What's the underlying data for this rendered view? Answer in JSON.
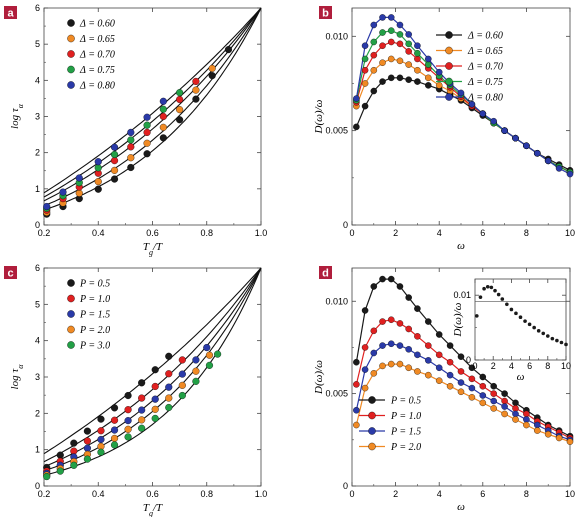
{
  "colors": {
    "black": "#1a1a1a",
    "orange": "#f08a24",
    "red": "#e02020",
    "green": "#22a046",
    "blue": "#2a3aa8",
    "badge": "#b01e3c"
  },
  "chart_data": [
    {
      "panel": "a",
      "type": "scatter",
      "xlabel": "Tg/T",
      "ylabel": "log τα",
      "xlim": [
        0.2,
        1.0
      ],
      "ylim": [
        0,
        6
      ],
      "xticks": [
        "0.2",
        "0.4",
        "0.6",
        "0.8",
        "1.0"
      ],
      "yticks": [
        "0",
        "1",
        "2",
        "3",
        "4",
        "5",
        "6"
      ],
      "legend_position": "top-left",
      "series": [
        {
          "name": "Δ = 0.60",
          "color": "black",
          "k": 2.2,
          "x": [
            0.21,
            0.27,
            0.33,
            0.4,
            0.46,
            0.52,
            0.58,
            0.64,
            0.7,
            0.76,
            0.82,
            0.88
          ],
          "y": [
            0.3,
            0.51,
            0.73,
            0.99,
            1.27,
            1.59,
            1.97,
            2.41,
            2.91,
            3.48,
            4.13,
            4.85
          ]
        },
        {
          "name": "Δ = 0.65",
          "color": "orange",
          "k": 1.75,
          "x": [
            0.21,
            0.27,
            0.33,
            0.4,
            0.46,
            0.52,
            0.58,
            0.64,
            0.7,
            0.76,
            0.82
          ],
          "y": [
            0.35,
            0.61,
            0.88,
            1.2,
            1.51,
            1.86,
            2.26,
            2.7,
            3.19,
            3.73,
            4.33
          ]
        },
        {
          "name": "Δ = 0.70",
          "color": "red",
          "k": 1.3,
          "x": [
            0.21,
            0.27,
            0.33,
            0.4,
            0.46,
            0.52,
            0.58,
            0.64,
            0.7,
            0.76
          ],
          "y": [
            0.41,
            0.73,
            1.05,
            1.43,
            1.78,
            2.16,
            2.56,
            3.0,
            3.47,
            3.97
          ]
        },
        {
          "name": "Δ = 0.75",
          "color": "green",
          "k": 1.0,
          "x": [
            0.21,
            0.27,
            0.33,
            0.4,
            0.46,
            0.52,
            0.58,
            0.64,
            0.7
          ],
          "y": [
            0.46,
            0.81,
            1.17,
            1.58,
            1.95,
            2.35,
            2.76,
            3.2,
            3.66
          ]
        },
        {
          "name": "Δ = 0.80",
          "color": "blue",
          "k": 0.7,
          "x": [
            0.21,
            0.27,
            0.33,
            0.4,
            0.46,
            0.52,
            0.58,
            0.64
          ],
          "y": [
            0.51,
            0.91,
            1.3,
            1.75,
            2.15,
            2.56,
            2.98,
            3.42
          ]
        }
      ]
    },
    {
      "panel": "b",
      "type": "line",
      "xlabel": "ω",
      "ylabel": "D(ω)/ω",
      "xlim": [
        0,
        10
      ],
      "ylim": [
        0,
        0.0115
      ],
      "xticks": [
        "0",
        "2",
        "4",
        "6",
        "8",
        "10"
      ],
      "yticks": [
        "0",
        "0.005",
        "0.010"
      ],
      "yticks_values": [
        0,
        0.005,
        0.01
      ],
      "legend_position": "top-right",
      "series": [
        {
          "name": "Δ = 0.60",
          "color": "black",
          "x": [
            0.2,
            0.6,
            1.0,
            1.4,
            1.8,
            2.2,
            2.6,
            3.0,
            3.5,
            4.0,
            4.5,
            5.0,
            5.5,
            6.0,
            6.5,
            7.0,
            7.5,
            8.0,
            8.5,
            9.0,
            9.5,
            10.0
          ],
          "y": [
            0.0052,
            0.0063,
            0.0071,
            0.0076,
            0.0078,
            0.0078,
            0.0077,
            0.0076,
            0.0074,
            0.0072,
            0.0069,
            0.0066,
            0.0062,
            0.0058,
            0.0054,
            0.005,
            0.0046,
            0.0042,
            0.0038,
            0.0035,
            0.0032,
            0.0029
          ]
        },
        {
          "name": "Δ = 0.65",
          "color": "orange",
          "x": [
            0.2,
            0.6,
            1.0,
            1.4,
            1.8,
            2.2,
            2.6,
            3.0,
            3.5,
            4.0,
            4.5,
            5.0,
            5.5,
            6.0,
            6.5,
            7.0,
            7.5,
            8.0,
            8.5,
            9.0,
            9.5,
            10.0
          ],
          "y": [
            0.0063,
            0.0075,
            0.0082,
            0.0086,
            0.0088,
            0.0087,
            0.0085,
            0.0082,
            0.0078,
            0.0074,
            0.0071,
            0.0067,
            0.0063,
            0.0059,
            0.0054,
            0.005,
            0.0046,
            0.0042,
            0.0038,
            0.0034,
            0.0031,
            0.0028
          ]
        },
        {
          "name": "Δ = 0.70",
          "color": "red",
          "x": [
            0.2,
            0.6,
            1.0,
            1.4,
            1.8,
            2.2,
            2.6,
            3.0,
            3.5,
            4.0,
            4.5,
            5.0,
            5.5,
            6.0,
            6.5,
            7.0,
            7.5,
            8.0,
            8.5,
            9.0,
            9.5,
            10.0
          ],
          "y": [
            0.0065,
            0.0082,
            0.009,
            0.0095,
            0.0097,
            0.0096,
            0.0092,
            0.0088,
            0.0083,
            0.0078,
            0.0073,
            0.0068,
            0.0063,
            0.0059,
            0.0054,
            0.005,
            0.0046,
            0.0042,
            0.0038,
            0.0034,
            0.0031,
            0.0028
          ]
        },
        {
          "name": "Δ = 0.75",
          "color": "green",
          "x": [
            0.2,
            0.6,
            1.0,
            1.4,
            1.8,
            2.2,
            2.6,
            3.0,
            3.5,
            4.0,
            4.5,
            5.0,
            5.5,
            6.0,
            6.5,
            7.0,
            7.5,
            8.0,
            8.5,
            9.0,
            9.5,
            10.0
          ],
          "y": [
            0.0066,
            0.0088,
            0.0097,
            0.0102,
            0.0103,
            0.0101,
            0.0096,
            0.0091,
            0.0085,
            0.0079,
            0.0074,
            0.0069,
            0.0064,
            0.0059,
            0.0054,
            0.005,
            0.0046,
            0.0042,
            0.0038,
            0.0034,
            0.0031,
            0.0028
          ]
        },
        {
          "name": "Δ = 0.80",
          "color": "blue",
          "x": [
            0.2,
            0.6,
            1.0,
            1.4,
            1.8,
            2.2,
            2.6,
            3.0,
            3.5,
            4.0,
            4.5,
            5.0,
            5.5,
            6.0,
            6.5,
            7.0,
            7.5,
            8.0,
            8.5,
            9.0,
            9.5,
            10.0
          ],
          "y": [
            0.0067,
            0.0095,
            0.0106,
            0.011,
            0.011,
            0.0106,
            0.0101,
            0.0095,
            0.0088,
            0.0081,
            0.0075,
            0.007,
            0.0064,
            0.0059,
            0.0055,
            0.005,
            0.0046,
            0.0042,
            0.0038,
            0.0034,
            0.003,
            0.0027
          ]
        }
      ]
    },
    {
      "panel": "c",
      "type": "scatter",
      "xlabel": "Tg/T",
      "ylabel": "log τα",
      "xlim": [
        0.2,
        1.0
      ],
      "ylim": [
        0,
        6
      ],
      "xticks": [
        "0.2",
        "0.4",
        "0.6",
        "0.8",
        "1.0"
      ],
      "yticks": [
        "0",
        "1",
        "2",
        "3",
        "4",
        "5",
        "6"
      ],
      "legend_position": "top-left",
      "series": [
        {
          "name": "P = 0.5",
          "color": "black",
          "k": 0.7,
          "x": [
            0.21,
            0.26,
            0.31,
            0.36,
            0.41,
            0.46,
            0.51,
            0.56,
            0.61,
            0.66
          ],
          "y": [
            0.51,
            0.85,
            1.18,
            1.51,
            1.84,
            2.15,
            2.49,
            2.84,
            3.2,
            3.57
          ]
        },
        {
          "name": "P = 1.0",
          "color": "red",
          "k": 1.3,
          "x": [
            0.21,
            0.26,
            0.31,
            0.36,
            0.41,
            0.46,
            0.51,
            0.56,
            0.61,
            0.66,
            0.71
          ],
          "y": [
            0.41,
            0.68,
            0.96,
            1.24,
            1.52,
            1.81,
            2.1,
            2.42,
            2.74,
            3.09,
            3.47
          ]
        },
        {
          "name": "P = 1.5",
          "color": "blue",
          "k": 1.75,
          "x": [
            0.21,
            0.26,
            0.31,
            0.36,
            0.41,
            0.46,
            0.51,
            0.56,
            0.61,
            0.66,
            0.71,
            0.76,
            0.8
          ],
          "y": [
            0.35,
            0.57,
            0.8,
            1.04,
            1.28,
            1.54,
            1.8,
            2.09,
            2.39,
            2.72,
            3.08,
            3.47,
            3.81
          ]
        },
        {
          "name": "P = 2.0",
          "color": "orange",
          "k": 2.2,
          "x": [
            0.21,
            0.26,
            0.31,
            0.36,
            0.41,
            0.46,
            0.51,
            0.56,
            0.61,
            0.66,
            0.71,
            0.76,
            0.81
          ],
          "y": [
            0.3,
            0.48,
            0.67,
            0.87,
            1.09,
            1.31,
            1.56,
            1.82,
            2.11,
            2.42,
            2.77,
            3.16,
            3.6
          ]
        },
        {
          "name": "P = 3.0",
          "color": "green",
          "k": 2.8,
          "x": [
            0.21,
            0.26,
            0.31,
            0.36,
            0.41,
            0.46,
            0.51,
            0.56,
            0.61,
            0.66,
            0.71,
            0.76,
            0.81,
            0.84
          ],
          "y": [
            0.26,
            0.41,
            0.57,
            0.74,
            0.93,
            1.13,
            1.35,
            1.59,
            1.86,
            2.16,
            2.49,
            2.88,
            3.32,
            3.63
          ]
        }
      ]
    },
    {
      "panel": "d",
      "type": "line",
      "xlabel": "ω",
      "ylabel": "D(ω)/ω",
      "xlim": [
        0,
        10
      ],
      "ylim": [
        0,
        0.0118
      ],
      "xticks": [
        "0",
        "2",
        "4",
        "6",
        "8",
        "10"
      ],
      "yticks": [
        "0",
        "0.005",
        "0.010"
      ],
      "yticks_values": [
        0,
        0.005,
        0.01
      ],
      "legend_position": "bottom-left",
      "series": [
        {
          "name": "P = 0.5",
          "color": "black",
          "x": [
            0.2,
            0.6,
            1.0,
            1.4,
            1.8,
            2.2,
            2.6,
            3.0,
            3.5,
            4.0,
            4.5,
            5.0,
            5.5,
            6.0,
            6.5,
            7.0,
            7.5,
            8.0,
            8.5,
            9.0,
            9.5,
            10.0
          ],
          "y": [
            0.0067,
            0.0095,
            0.0108,
            0.0112,
            0.0112,
            0.0108,
            0.0102,
            0.0096,
            0.0089,
            0.0082,
            0.0076,
            0.007,
            0.0064,
            0.0059,
            0.0054,
            0.005,
            0.0045,
            0.0041,
            0.0037,
            0.0033,
            0.003,
            0.0027
          ]
        },
        {
          "name": "P = 1.0",
          "color": "red",
          "x": [
            0.2,
            0.6,
            1.0,
            1.4,
            1.8,
            2.2,
            2.6,
            3.0,
            3.5,
            4.0,
            4.5,
            5.0,
            5.5,
            6.0,
            6.5,
            7.0,
            7.5,
            8.0,
            8.5,
            9.0,
            9.5,
            10.0
          ],
          "y": [
            0.0055,
            0.0075,
            0.0084,
            0.0089,
            0.009,
            0.0088,
            0.0085,
            0.0081,
            0.0076,
            0.0071,
            0.0067,
            0.0062,
            0.0058,
            0.0054,
            0.005,
            0.0046,
            0.0042,
            0.0039,
            0.0035,
            0.0032,
            0.0029,
            0.0026
          ]
        },
        {
          "name": "P = 1.5",
          "color": "blue",
          "x": [
            0.2,
            0.6,
            1.0,
            1.4,
            1.8,
            2.2,
            2.6,
            3.0,
            3.5,
            4.0,
            4.5,
            5.0,
            5.5,
            6.0,
            6.5,
            7.0,
            7.5,
            8.0,
            8.5,
            9.0,
            9.5,
            10.0
          ],
          "y": [
            0.0041,
            0.0063,
            0.0072,
            0.0076,
            0.0077,
            0.0076,
            0.0074,
            0.0071,
            0.0068,
            0.0064,
            0.006,
            0.0056,
            0.0053,
            0.0049,
            0.0046,
            0.0043,
            0.0039,
            0.0036,
            0.0033,
            0.003,
            0.0027,
            0.0025
          ]
        },
        {
          "name": "P = 2.0",
          "color": "orange",
          "x": [
            0.2,
            0.6,
            1.0,
            1.4,
            1.8,
            2.2,
            2.6,
            3.0,
            3.5,
            4.0,
            4.5,
            5.0,
            5.5,
            6.0,
            6.5,
            7.0,
            7.5,
            8.0,
            8.5,
            9.0,
            9.5,
            10.0
          ],
          "y": [
            0.0033,
            0.0053,
            0.0061,
            0.0065,
            0.0066,
            0.0066,
            0.0064,
            0.0062,
            0.006,
            0.0057,
            0.0054,
            0.0051,
            0.0048,
            0.0045,
            0.0042,
            0.0039,
            0.0036,
            0.0033,
            0.003,
            0.0028,
            0.0026,
            0.0024
          ]
        }
      ],
      "inset": {
        "type": "scatter",
        "xlabel": "ω",
        "ylabel": "D(ω)/ω",
        "xlim": [
          0,
          10
        ],
        "ylim": [
          0,
          0.0125
        ],
        "xticks": [
          "0",
          "2",
          "4",
          "6",
          "8",
          "10"
        ],
        "yticks": [
          "0",
          "0.01"
        ],
        "yticks_values": [
          0,
          0.01
        ],
        "series": [
          {
            "color": "black",
            "x": [
              0.2,
              0.6,
              1.0,
              1.4,
              1.8,
              2.2,
              2.6,
              3.0,
              3.5,
              4.0,
              4.5,
              5.0,
              5.5,
              6.0,
              6.5,
              7.0,
              7.5,
              8.0,
              8.5,
              9.0,
              9.5,
              10.0
            ],
            "y": [
              0.0068,
              0.0097,
              0.011,
              0.0113,
              0.0112,
              0.0107,
              0.0101,
              0.0094,
              0.0086,
              0.0078,
              0.0072,
              0.0066,
              0.006,
              0.0055,
              0.005,
              0.0045,
              0.0041,
              0.0037,
              0.0033,
              0.003,
              0.0027,
              0.0024
            ]
          }
        ]
      }
    }
  ]
}
